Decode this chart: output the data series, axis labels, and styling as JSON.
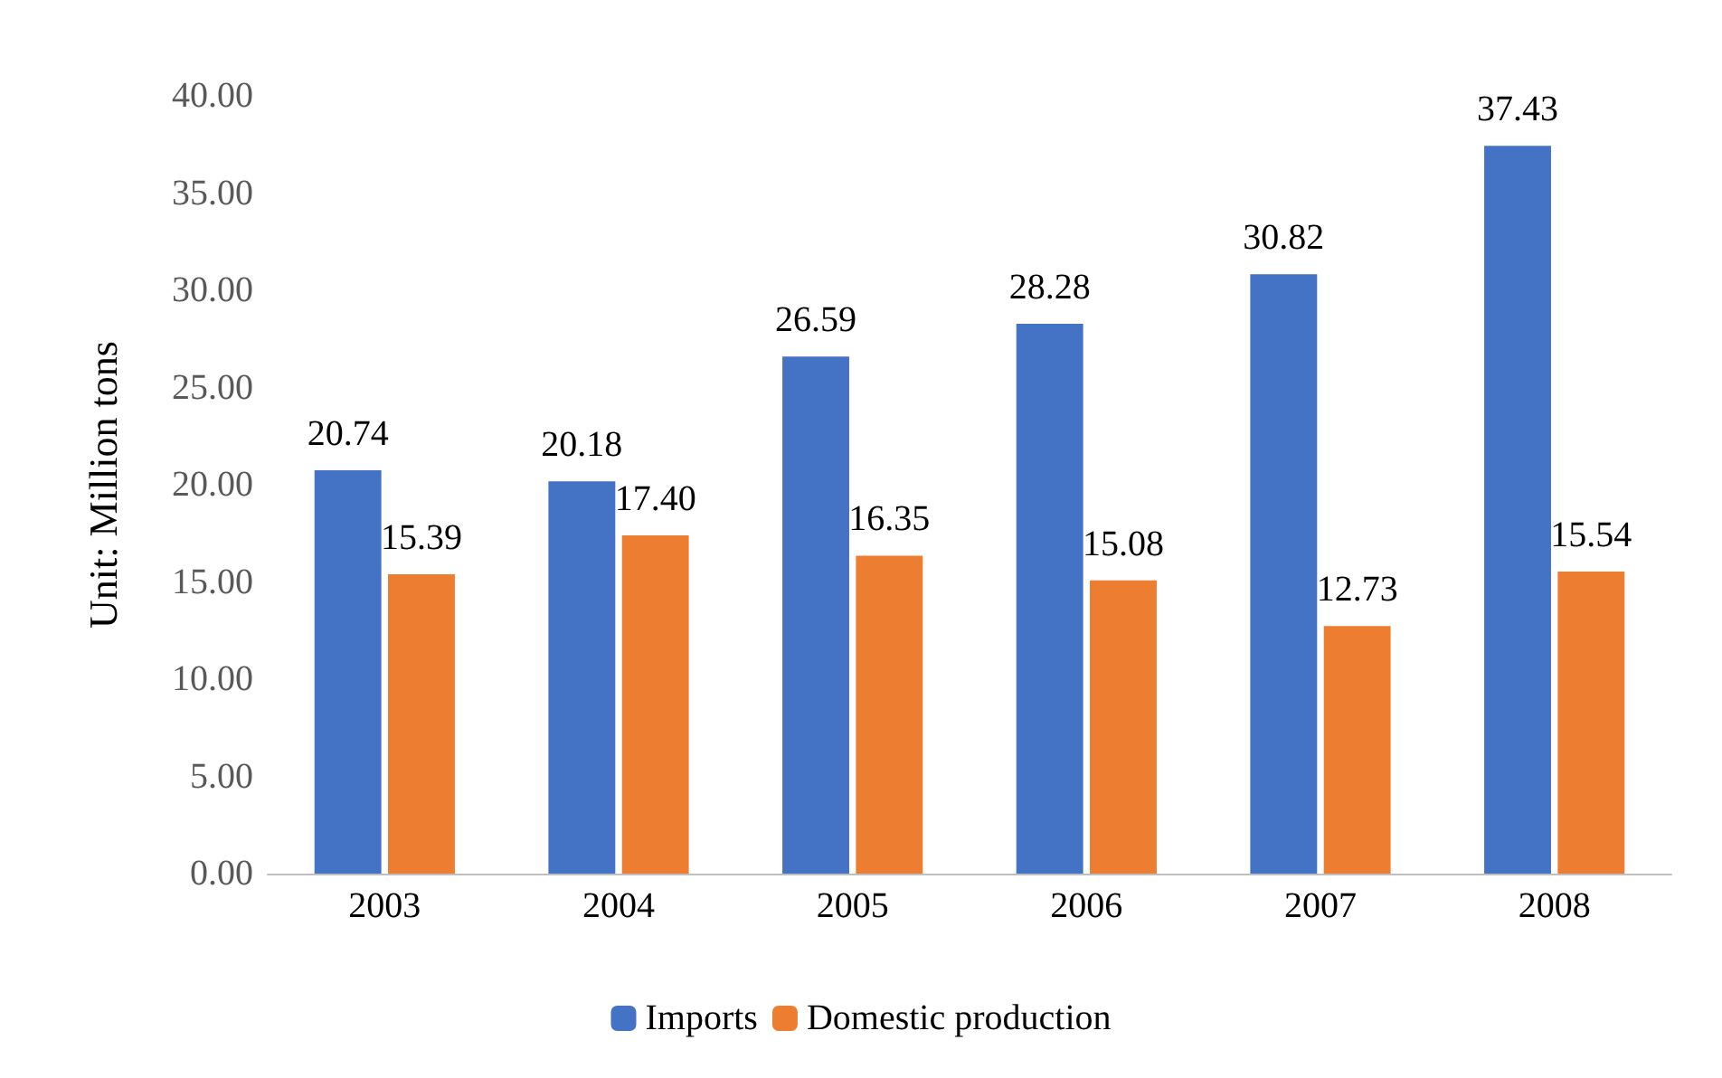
{
  "chart_data": {
    "type": "bar",
    "ylabel": "Unit: Million tons",
    "categories": [
      "2003",
      "2004",
      "2005",
      "2006",
      "2007",
      "2008"
    ],
    "series": [
      {
        "name": "Imports",
        "color": "#4472c4",
        "values": [
          20.74,
          20.18,
          26.59,
          28.28,
          30.82,
          37.43
        ],
        "value_labels": [
          "20.74",
          "20.18",
          "26.59",
          "28.28",
          "30.82",
          "37.43"
        ]
      },
      {
        "name": "Domestic production",
        "color": "#ed7d31",
        "values": [
          15.39,
          17.4,
          16.35,
          15.08,
          12.73,
          15.54
        ],
        "value_labels": [
          "15.39",
          "17.40",
          "16.35",
          "15.08",
          "12.73",
          "15.54"
        ]
      }
    ],
    "ylim": [
      0,
      40
    ],
    "yticks": [
      {
        "value": 0,
        "label": "0.00"
      },
      {
        "value": 5,
        "label": "5.00"
      },
      {
        "value": 10,
        "label": "10.00"
      },
      {
        "value": 15,
        "label": "15.00"
      },
      {
        "value": 20,
        "label": "20.00"
      },
      {
        "value": 25,
        "label": "25.00"
      },
      {
        "value": 30,
        "label": "30.00"
      },
      {
        "value": 35,
        "label": "35.00"
      },
      {
        "value": 40,
        "label": "40.00"
      }
    ],
    "grid": false,
    "legend": "bottom"
  }
}
